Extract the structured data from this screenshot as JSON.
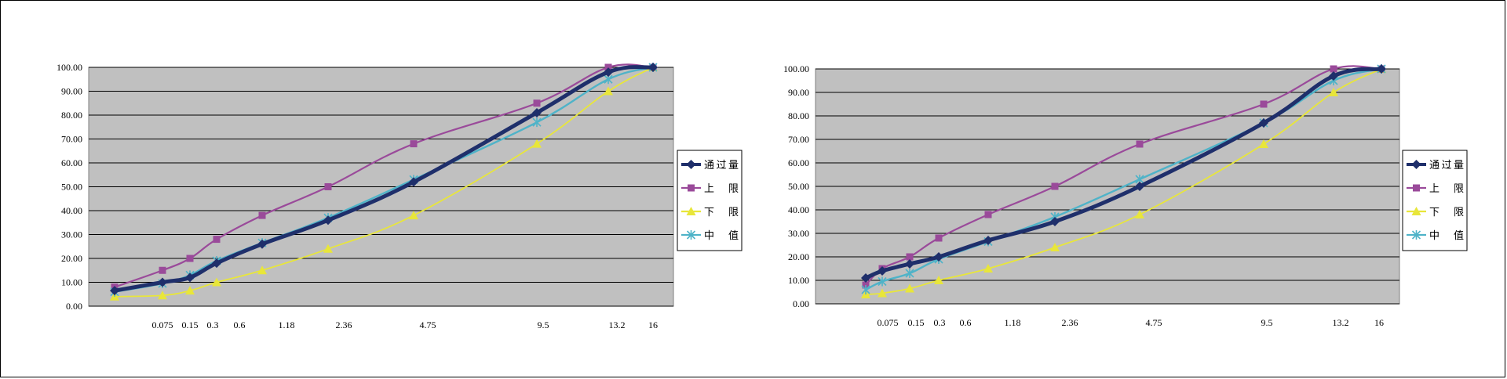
{
  "chart_data": [
    {
      "type": "line",
      "title": "",
      "xlabel": "",
      "ylabel": "",
      "ylim": [
        0,
        100
      ],
      "y_tick_labels": [
        "0.00",
        "10.00",
        "20.00",
        "30.00",
        "40.00",
        "50.00",
        "60.00",
        "70.00",
        "80.00",
        "90.00",
        "100.00"
      ],
      "x_tick_labels": [
        "0.075",
        "0.15",
        "0.3",
        "0.6",
        "1.18",
        "2.36",
        "4.75",
        "9.5",
        "13.2",
        "16"
      ],
      "grid": true,
      "legend_position": "right",
      "series": [
        {
          "name": "通 过 量",
          "color": "#1f2f6b",
          "values": [
            6.5,
            10,
            12,
            18,
            26,
            36,
            52,
            81,
            98,
            100
          ]
        },
        {
          "name": "上 限",
          "color": "#9a4a9a",
          "values": [
            8,
            15,
            20,
            28,
            38,
            50,
            68,
            85,
            100,
            100
          ]
        },
        {
          "name": "下 限",
          "color": "#e8e63a",
          "values": [
            4,
            4.5,
            6.5,
            10,
            15,
            24,
            38,
            68,
            90,
            100
          ]
        },
        {
          "name": "中 值",
          "color": "#4fb3c8",
          "values": [
            6,
            9.5,
            13,
            19,
            26.5,
            37,
            53,
            77,
            95,
            100
          ]
        }
      ]
    },
    {
      "type": "line",
      "title": "",
      "xlabel": "",
      "ylabel": "",
      "ylim": [
        0,
        100
      ],
      "y_tick_labels": [
        "0.00",
        "10.00",
        "20.00",
        "30.00",
        "40.00",
        "50.00",
        "60.00",
        "70.00",
        "80.00",
        "90.00",
        "100.00"
      ],
      "x_tick_labels": [
        "0.075",
        "0.15",
        "0.3",
        "0.6",
        "1.18",
        "2.36",
        "4.75",
        "9.5",
        "13.2",
        "16"
      ],
      "grid": true,
      "legend_position": "right",
      "series": [
        {
          "name": "通 过 量",
          "color": "#1f2f6b",
          "values": [
            11,
            14,
            17,
            20,
            27,
            35,
            50,
            77,
            97,
            100
          ]
        },
        {
          "name": "上 限",
          "color": "#9a4a9a",
          "values": [
            8,
            15,
            20,
            28,
            38,
            50,
            68,
            85,
            100,
            100
          ]
        },
        {
          "name": "下 限",
          "color": "#e8e63a",
          "values": [
            4,
            4.5,
            6.5,
            10,
            15,
            24,
            38,
            68,
            90,
            100
          ]
        },
        {
          "name": "中 值",
          "color": "#4fb3c8",
          "values": [
            6,
            9.5,
            13,
            19,
            26.5,
            37,
            53,
            77,
            95,
            100
          ]
        }
      ]
    }
  ]
}
